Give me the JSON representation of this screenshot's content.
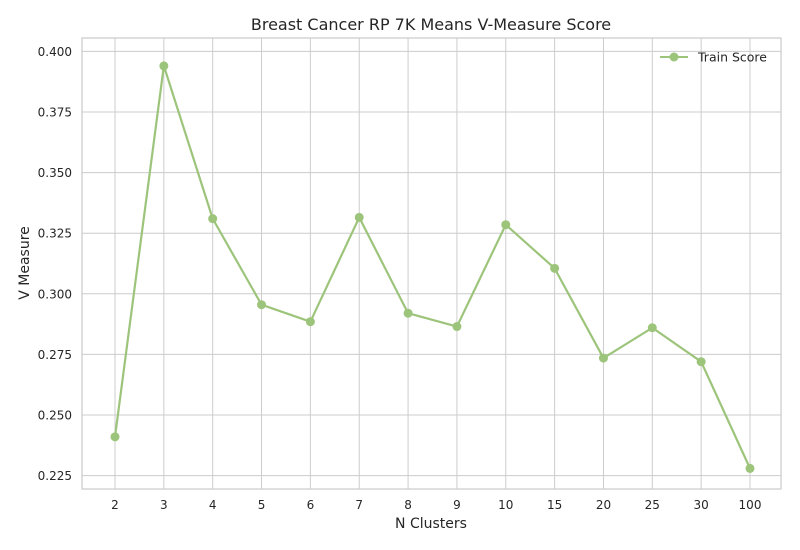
{
  "chart_data": {
    "type": "line",
    "title": "Breast Cancer RP 7K Means V-Measure Score",
    "xlabel": "N Clusters",
    "ylabel": "V Measure",
    "categories": [
      "2",
      "3",
      "4",
      "5",
      "6",
      "7",
      "8",
      "9",
      "10",
      "15",
      "20",
      "25",
      "30",
      "100"
    ],
    "series": [
      {
        "name": "Train Score",
        "color": "#9dc47b",
        "values": [
          0.241,
          0.394,
          0.331,
          0.2955,
          0.2885,
          0.3315,
          0.292,
          0.2865,
          0.3285,
          0.3105,
          0.2735,
          0.286,
          0.272,
          0.228
        ]
      }
    ],
    "yticks": [
      "0.225",
      "0.250",
      "0.275",
      "0.300",
      "0.325",
      "0.350",
      "0.375",
      "0.400"
    ],
    "ylim": [
      0.2195,
      0.4055
    ],
    "grid": true,
    "legend_position": "top-right"
  }
}
